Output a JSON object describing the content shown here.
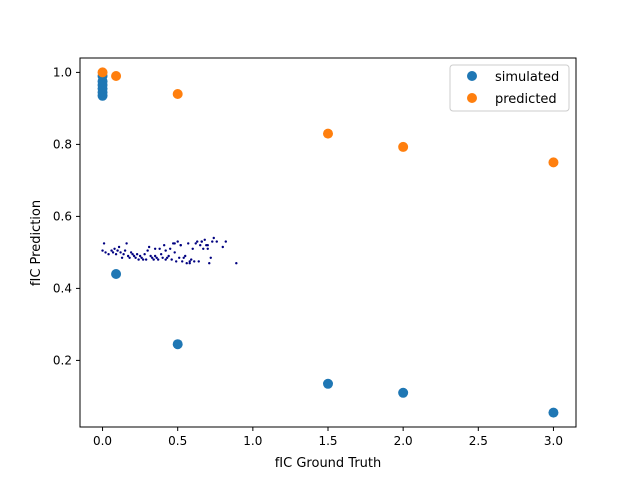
{
  "chart_data": {
    "type": "scatter",
    "title": "",
    "xlabel": "fIC Ground Truth",
    "ylabel": "fIC Prediction",
    "xlim": [
      -0.15,
      3.15
    ],
    "ylim": [
      0.015,
      1.04
    ],
    "xticks": [
      0.0,
      0.5,
      1.0,
      1.5,
      2.0,
      2.5,
      3.0
    ],
    "xtick_labels": [
      "0.0",
      "0.5",
      "1.0",
      "1.5",
      "2.0",
      "2.5",
      "3.0"
    ],
    "yticks": [
      0.2,
      0.4,
      0.6,
      0.8,
      1.0
    ],
    "ytick_labels": [
      "0.2",
      "0.4",
      "0.6",
      "0.8",
      "1.0"
    ],
    "grid": false,
    "legend_position": "top-right",
    "series": [
      {
        "name": "simulated",
        "color": "#1f77b4",
        "marker": "circle",
        "x": [
          0.0,
          0.0,
          0.0,
          0.0,
          0.0,
          0.0,
          0.09,
          0.5,
          1.5,
          2.0,
          3.0
        ],
        "y": [
          0.935,
          0.945,
          0.955,
          0.965,
          0.975,
          0.99,
          0.44,
          0.245,
          0.135,
          0.11,
          0.055
        ]
      },
      {
        "name": "predicted",
        "color": "#ff7f0e",
        "marker": "circle",
        "x": [
          0.0,
          0.09,
          0.5,
          1.5,
          2.0,
          3.0
        ],
        "y": [
          1.0,
          0.99,
          0.94,
          0.83,
          0.793,
          0.75
        ]
      },
      {
        "color": "#000080",
        "marker": "dot",
        "x": [
          0.0,
          0.02,
          0.04,
          0.06,
          0.07,
          0.08,
          0.09,
          0.1,
          0.11,
          0.12,
          0.13,
          0.14,
          0.15,
          0.17,
          0.18,
          0.19,
          0.2,
          0.21,
          0.22,
          0.23,
          0.24,
          0.25,
          0.26,
          0.27,
          0.28,
          0.29,
          0.3,
          0.31,
          0.32,
          0.33,
          0.34,
          0.35,
          0.36,
          0.37,
          0.38,
          0.39,
          0.4,
          0.41,
          0.42,
          0.43,
          0.44,
          0.45,
          0.46,
          0.47,
          0.48,
          0.49,
          0.5,
          0.51,
          0.52,
          0.53,
          0.54,
          0.55,
          0.56,
          0.57,
          0.58,
          0.59,
          0.6,
          0.61,
          0.62,
          0.63,
          0.64,
          0.65,
          0.66,
          0.67,
          0.68,
          0.69,
          0.7,
          0.71,
          0.72,
          0.73,
          0.74,
          0.76,
          0.8,
          0.82,
          0.89,
          0.01,
          0.16,
          0.35,
          0.42,
          0.48,
          0.52,
          0.58,
          0.66,
          0.7
        ],
        "y": [
          0.505,
          0.5,
          0.495,
          0.505,
          0.5,
          0.51,
          0.495,
          0.505,
          0.515,
          0.5,
          0.485,
          0.495,
          0.505,
          0.49,
          0.485,
          0.5,
          0.495,
          0.49,
          0.485,
          0.495,
          0.48,
          0.49,
          0.485,
          0.48,
          0.495,
          0.48,
          0.505,
          0.515,
          0.49,
          0.485,
          0.48,
          0.49,
          0.485,
          0.48,
          0.51,
          0.495,
          0.485,
          0.52,
          0.48,
          0.485,
          0.49,
          0.51,
          0.48,
          0.525,
          0.5,
          0.475,
          0.53,
          0.485,
          0.52,
          0.475,
          0.485,
          0.49,
          0.47,
          0.525,
          0.475,
          0.48,
          0.51,
          0.475,
          0.525,
          0.53,
          0.475,
          0.52,
          0.53,
          0.51,
          0.535,
          0.52,
          0.51,
          0.47,
          0.485,
          0.53,
          0.54,
          0.53,
          0.515,
          0.53,
          0.47,
          0.525,
          0.525,
          0.51,
          0.505,
          0.525,
          0.52,
          0.47,
          0.53,
          0.52
        ]
      }
    ]
  }
}
